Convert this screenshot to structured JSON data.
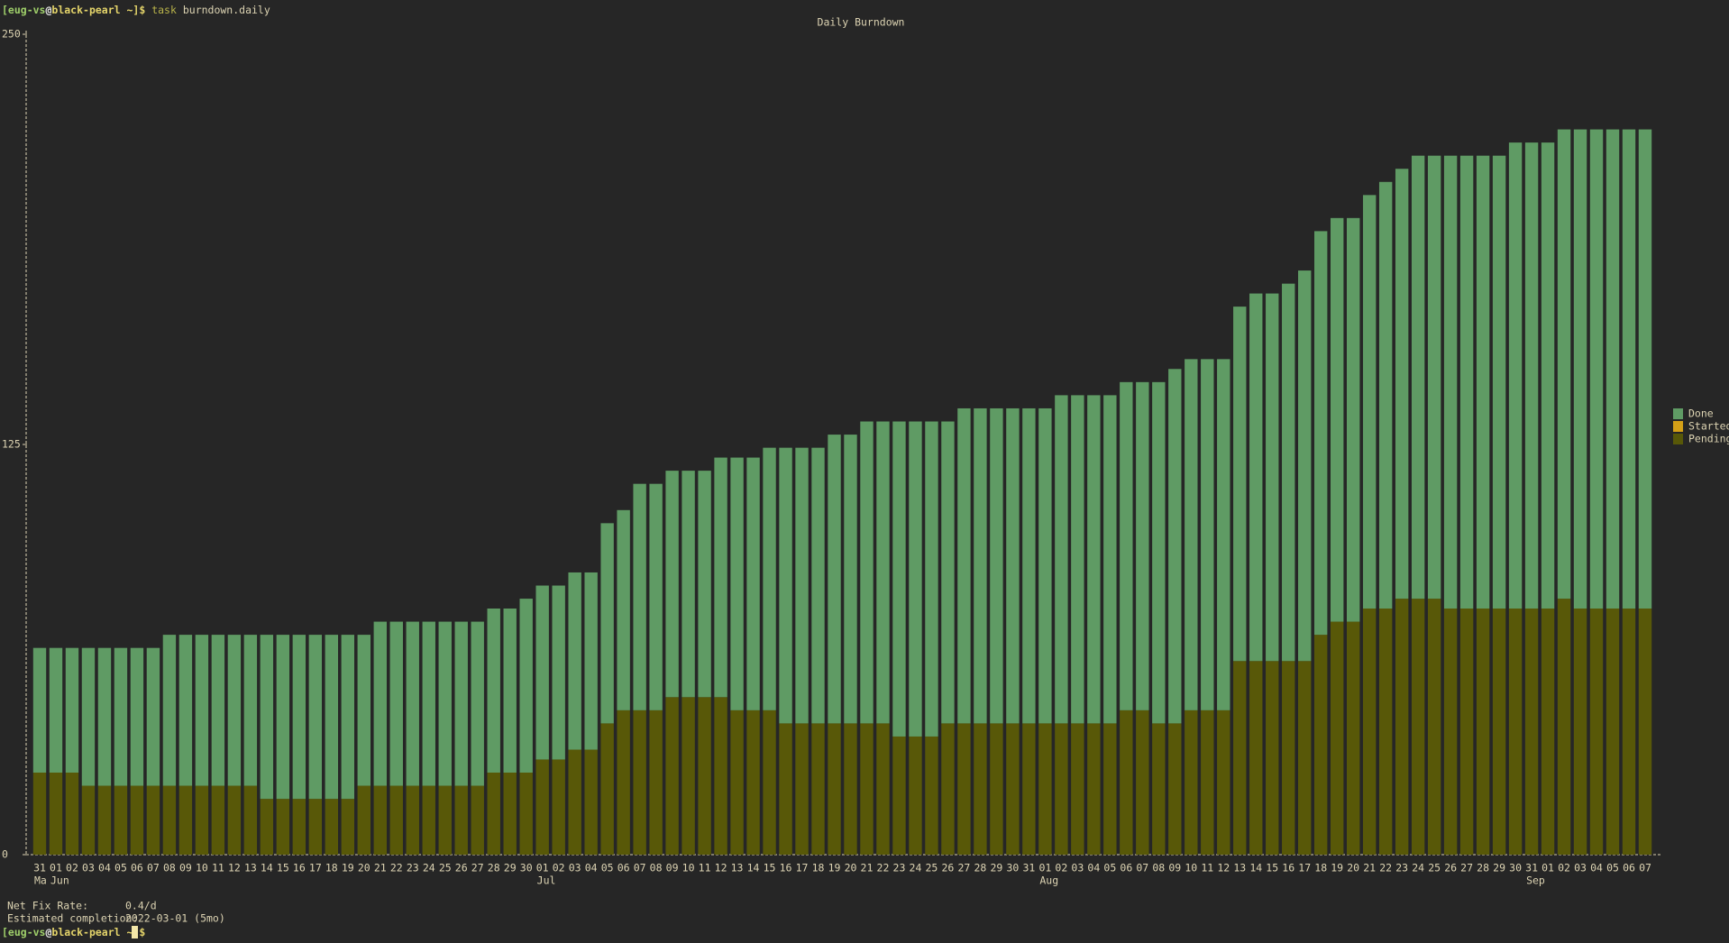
{
  "terminal": {
    "prompt": [
      "[eug-vs",
      "@",
      "black-pearl ~]$"
    ],
    "command_name": "task",
    "command_args": "burndown.daily",
    "stats": [
      {
        "label": "Net Fix Rate:",
        "value": "0.4/d"
      },
      {
        "label": "Estimated completion:",
        "value": "2022-03-01 (5mo)"
      }
    ]
  },
  "chart_data": {
    "type": "bar",
    "stacked": true,
    "title": "Daily Burndown",
    "categories": [
      "31",
      "01",
      "02",
      "03",
      "04",
      "05",
      "06",
      "07",
      "08",
      "09",
      "10",
      "11",
      "12",
      "13",
      "14",
      "15",
      "16",
      "17",
      "18",
      "19",
      "20",
      "21",
      "22",
      "23",
      "24",
      "25",
      "26",
      "27",
      "28",
      "29",
      "30",
      "01",
      "02",
      "03",
      "04",
      "05",
      "06",
      "07",
      "08",
      "09",
      "10",
      "11",
      "12",
      "13",
      "14",
      "15",
      "16",
      "17",
      "18",
      "19",
      "20",
      "21",
      "22",
      "23",
      "24",
      "25",
      "26",
      "27",
      "28",
      "29",
      "30",
      "31",
      "01",
      "02",
      "03",
      "04",
      "05",
      "06",
      "07",
      "08",
      "09",
      "10",
      "11",
      "12",
      "13",
      "14",
      "15",
      "16",
      "17",
      "18",
      "19",
      "20",
      "21",
      "22",
      "23",
      "24",
      "25",
      "26",
      "27",
      "28",
      "29",
      "30",
      "31",
      "01",
      "02",
      "03",
      "04",
      "05",
      "06",
      "07"
    ],
    "month_labels": [
      "Ma",
      "Jun",
      null,
      null,
      null,
      null,
      null,
      null,
      null,
      null,
      null,
      null,
      null,
      null,
      null,
      null,
      null,
      null,
      null,
      null,
      null,
      null,
      null,
      null,
      null,
      null,
      null,
      null,
      null,
      null,
      null,
      "Jul",
      null,
      null,
      null,
      null,
      null,
      null,
      null,
      null,
      null,
      null,
      null,
      null,
      null,
      null,
      null,
      null,
      null,
      null,
      null,
      null,
      null,
      null,
      null,
      null,
      null,
      null,
      null,
      null,
      null,
      null,
      "Aug",
      null,
      null,
      null,
      null,
      null,
      null,
      null,
      null,
      null,
      null,
      null,
      null,
      null,
      null,
      null,
      null,
      null,
      null,
      null,
      null,
      null,
      null,
      null,
      null,
      null,
      null,
      null,
      null,
      null,
      "Sep",
      null,
      null,
      null,
      null,
      null,
      null
    ],
    "series": [
      {
        "name": "Done",
        "color": "#5f9b64",
        "values": [
          38,
          38,
          38,
          42,
          42,
          42,
          42,
          42,
          46,
          46,
          46,
          46,
          46,
          46,
          50,
          50,
          50,
          50,
          50,
          50,
          46,
          50,
          50,
          50,
          50,
          50,
          50,
          50,
          50,
          50,
          53,
          53,
          53,
          54,
          54,
          61,
          61,
          69,
          69,
          69,
          69,
          69,
          73,
          77,
          77,
          80,
          84,
          84,
          84,
          88,
          88,
          92,
          92,
          96,
          96,
          96,
          92,
          96,
          96,
          96,
          96,
          96,
          96,
          100,
          100,
          100,
          100,
          100,
          100,
          104,
          108,
          107,
          107,
          107,
          108,
          112,
          112,
          115,
          119,
          123,
          123,
          123,
          126,
          130,
          131,
          135,
          135,
          138,
          138,
          138,
          138,
          142,
          142,
          142,
          143,
          146,
          146,
          146,
          146,
          146
        ]
      },
      {
        "name": "Started",
        "color": "#d4a017",
        "values": [
          0,
          0,
          0,
          0,
          0,
          0,
          0,
          0,
          0,
          0,
          0,
          0,
          0,
          0,
          0,
          0,
          0,
          0,
          0,
          0,
          0,
          0,
          0,
          0,
          0,
          0,
          0,
          0,
          0,
          0,
          0,
          0,
          0,
          0,
          0,
          0,
          0,
          0,
          0,
          0,
          0,
          0,
          0,
          0,
          0,
          0,
          0,
          0,
          0,
          0,
          0,
          0,
          0,
          0,
          0,
          0,
          0,
          0,
          0,
          0,
          0,
          0,
          0,
          0,
          0,
          0,
          0,
          0,
          0,
          0,
          0,
          0,
          0,
          0,
          0,
          0,
          0,
          0,
          0,
          0,
          0,
          0,
          0,
          0,
          0,
          0,
          0,
          0,
          0,
          0,
          0,
          0,
          0,
          0,
          0,
          0,
          0,
          0,
          0,
          0
        ]
      },
      {
        "name": "Pending",
        "color": "#585808",
        "values": [
          25,
          25,
          25,
          21,
          21,
          21,
          21,
          21,
          21,
          21,
          21,
          21,
          21,
          21,
          17,
          17,
          17,
          17,
          17,
          17,
          21,
          21,
          21,
          21,
          21,
          21,
          21,
          21,
          25,
          25,
          25,
          29,
          29,
          32,
          32,
          40,
          44,
          44,
          44,
          48,
          48,
          48,
          48,
          44,
          44,
          44,
          40,
          40,
          40,
          40,
          40,
          40,
          40,
          36,
          36,
          36,
          40,
          40,
          40,
          40,
          40,
          40,
          40,
          40,
          40,
          40,
          40,
          44,
          44,
          40,
          40,
          44,
          44,
          44,
          59,
          59,
          59,
          59,
          59,
          67,
          71,
          71,
          75,
          75,
          78,
          78,
          78,
          75,
          75,
          75,
          75,
          75,
          75,
          75,
          78,
          75,
          75,
          75,
          75,
          75
        ]
      }
    ],
    "ylim": [
      0,
      250
    ],
    "yticks": [
      0,
      125,
      250
    ],
    "legend": "right"
  }
}
